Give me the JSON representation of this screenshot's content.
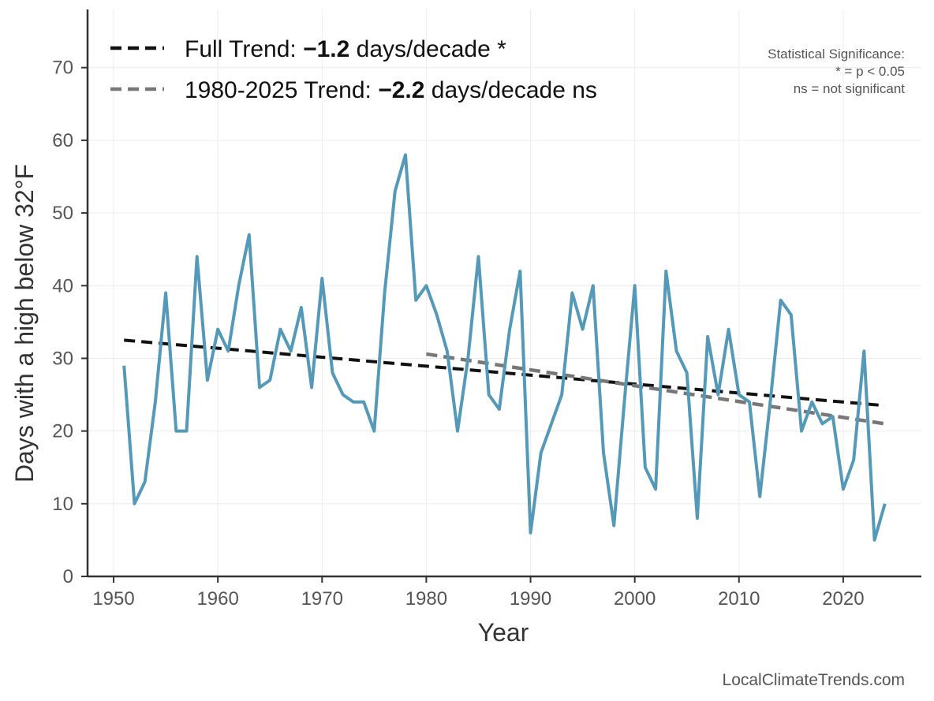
{
  "chart_data": {
    "type": "line",
    "xlabel": "Year",
    "ylabel": "Days with a high below 32°F",
    "xlim": [
      1947.5,
      2027.5
    ],
    "ylim": [
      0,
      78
    ],
    "xticks": [
      1950,
      1960,
      1970,
      1980,
      1990,
      2000,
      2010,
      2020
    ],
    "yticks": [
      0,
      10,
      20,
      30,
      40,
      50,
      60,
      70
    ],
    "grid": true,
    "series": [
      {
        "name": "Days with a high below 32°F",
        "color": "#5499b8",
        "x": [
          1951,
          1952,
          1953,
          1954,
          1955,
          1956,
          1957,
          1958,
          1959,
          1960,
          1961,
          1962,
          1963,
          1964,
          1965,
          1966,
          1967,
          1968,
          1969,
          1970,
          1971,
          1972,
          1973,
          1974,
          1975,
          1976,
          1977,
          1978,
          1979,
          1980,
          1981,
          1982,
          1983,
          1984,
          1985,
          1986,
          1987,
          1988,
          1989,
          1990,
          1991,
          1992,
          1993,
          1994,
          1995,
          1996,
          1997,
          1998,
          1999,
          2000,
          2001,
          2002,
          2003,
          2004,
          2005,
          2006,
          2007,
          2008,
          2009,
          2010,
          2011,
          2012,
          2013,
          2014,
          2015,
          2016,
          2017,
          2018,
          2019,
          2020,
          2021,
          2022,
          2023,
          2024
        ],
        "values": [
          29,
          10,
          13,
          24,
          39,
          20,
          20,
          44,
          27,
          34,
          31,
          40,
          47,
          26,
          27,
          34,
          31,
          37,
          26,
          41,
          28,
          25,
          24,
          24,
          20,
          39,
          53,
          58,
          38,
          40,
          36,
          31,
          20,
          30,
          44,
          25,
          23,
          34,
          42,
          6,
          17,
          21,
          25,
          39,
          34,
          40,
          17,
          7,
          24,
          40,
          15,
          12,
          42,
          31,
          28,
          8,
          33,
          25,
          34,
          25,
          24,
          11,
          24,
          38,
          36,
          20,
          24,
          21,
          22,
          12,
          16,
          31,
          5,
          10
        ]
      }
    ],
    "trend_lines": [
      {
        "name": "Full Trend",
        "x": [
          1951,
          2024
        ],
        "y": [
          32.5,
          23.5
        ],
        "color": "#111111"
      },
      {
        "name": "1980-2025 Trend",
        "x": [
          1980,
          2024
        ],
        "y": [
          30.6,
          21.0
        ],
        "color": "#777777"
      }
    ],
    "legend": {
      "placement": "top-left",
      "entries": [
        {
          "prefix": "Full Trend: ",
          "value": "−1.2",
          "suffix": " days/decade *",
          "color": "#111111"
        },
        {
          "prefix": "1980-2025 Trend: ",
          "value": "−2.2",
          "suffix": " days/decade ns",
          "color": "#777777"
        }
      ]
    },
    "annotations": {
      "significance_title": "Statistical Significance:",
      "significance_line1": "* = p < 0.05",
      "significance_line2": "ns = not significant"
    },
    "source": "LocalClimateTrends.com"
  }
}
